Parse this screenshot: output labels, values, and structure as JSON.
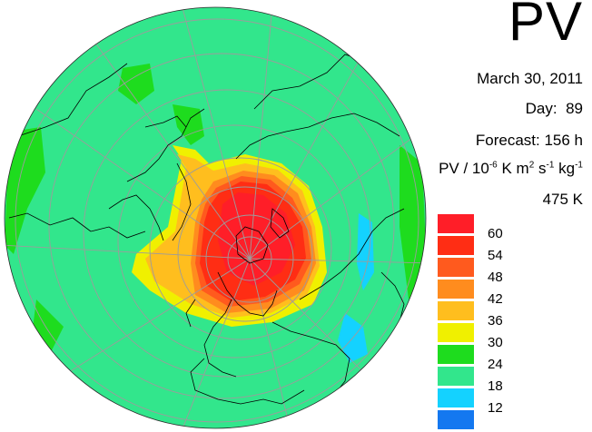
{
  "title": "PV",
  "date": "March 30, 2011",
  "day_label": "Day:",
  "day_value": "89",
  "forecast_label": "Forecast:",
  "forecast_value": "156 h",
  "units": {
    "prefix": "PV / 10",
    "exp1": "-6",
    "mid1": " K m",
    "exp2": "2",
    "mid2": " s",
    "exp3": "-1",
    "mid3": " kg",
    "exp4": "-1"
  },
  "level": "475 K",
  "legend": [
    {
      "color": "#ff1e28",
      "label": "60"
    },
    {
      "color": "#ff2d14",
      "label": "54"
    },
    {
      "color": "#ff5a1e",
      "label": "48"
    },
    {
      "color": "#ff8c1e",
      "label": "42"
    },
    {
      "color": "#ffbe1e",
      "label": "36"
    },
    {
      "color": "#f0f000",
      "label": "30"
    },
    {
      "color": "#1edc1e",
      "label": "24"
    },
    {
      "color": "#32e68c",
      "label": "18"
    },
    {
      "color": "#14d2ff",
      "label": "12"
    },
    {
      "color": "#1478f0",
      "label": ""
    }
  ],
  "colors": {
    "background_field": "#32e68c",
    "grid": "#9c9c9c",
    "coast": "#000000"
  }
}
